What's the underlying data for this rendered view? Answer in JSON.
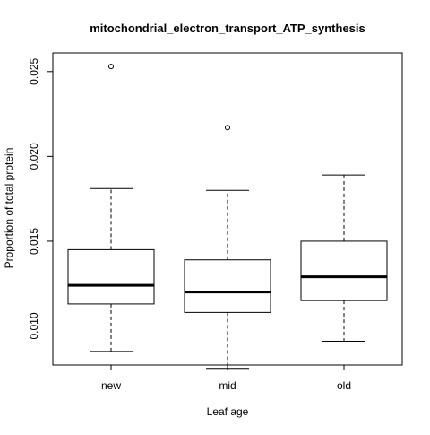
{
  "chart_data": {
    "type": "boxplot",
    "title": "mitochondrial_electron_transport_ATP_synthesis",
    "xlabel": "Leaf age",
    "ylabel": "Proportion of total protein",
    "categories": [
      "new",
      "mid",
      "old"
    ],
    "ylim": [
      0.0077,
      0.0261
    ],
    "y_ticks": [
      0.01,
      0.015,
      0.02,
      0.025
    ],
    "y_tick_labels": [
      "0.010",
      "0.015",
      "0.020",
      "0.025"
    ],
    "grid": false,
    "boxes": [
      {
        "category": "new",
        "whisker_low": 0.0085,
        "q1": 0.0113,
        "median": 0.0124,
        "q3": 0.0145,
        "whisker_high": 0.0181,
        "outliers": [
          0.0253
        ]
      },
      {
        "category": "mid",
        "whisker_low": 0.0075,
        "q1": 0.0108,
        "median": 0.012,
        "q3": 0.0139,
        "whisker_high": 0.018,
        "outliers": [
          0.0217
        ]
      },
      {
        "category": "old",
        "whisker_low": 0.0091,
        "q1": 0.0115,
        "median": 0.0129,
        "q3": 0.015,
        "whisker_high": 0.0189,
        "outliers": []
      }
    ],
    "colors": {
      "box_fill": "#ffffff",
      "stroke": "#000000"
    }
  }
}
